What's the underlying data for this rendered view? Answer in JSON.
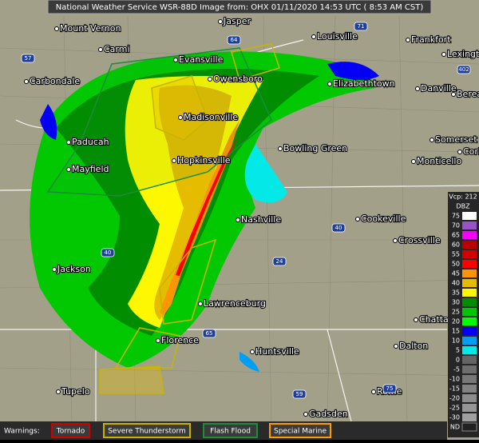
{
  "header": {
    "title": "National Weather Service WSR-88D Image from: OHX 01/11/2020 14:53 UTC ( 8:53 AM CST)"
  },
  "cities": [
    "Mount Vernon",
    "Jasper",
    "Louisville",
    "Frankfort",
    "Lexington",
    "Carmi",
    "Evansville",
    "Owensboro",
    "Elizabethtown",
    "Carbondale",
    "Danville",
    "Berea",
    "Madisonville",
    "Paducah",
    "Hopkinsville",
    "Bowling Green",
    "Somerset",
    "Corbin",
    "Mayfield",
    "Monticello",
    "Nashville",
    "Cookeville",
    "Crossville",
    "Jackson",
    "Lawrenceburg",
    "Chattanooga",
    "Florence",
    "Dalton",
    "Huntsville",
    "Tupelo",
    "Rome",
    "Gadsden"
  ],
  "highways": [
    "57",
    "64",
    "71",
    "402",
    "40",
    "24",
    "65",
    "59",
    "75",
    "40"
  ],
  "legend": {
    "vcp": "Vcp: 212",
    "unit": "DBZ",
    "scale": [
      {
        "value": 75,
        "color": "#fdfdfd"
      },
      {
        "value": 70,
        "color": "#9854c6"
      },
      {
        "value": 65,
        "color": "#f800fd"
      },
      {
        "value": 60,
        "color": "#bc0000"
      },
      {
        "value": 55,
        "color": "#d40000"
      },
      {
        "value": 50,
        "color": "#fd0000"
      },
      {
        "value": 45,
        "color": "#fd9500"
      },
      {
        "value": 40,
        "color": "#e5bc00"
      },
      {
        "value": 35,
        "color": "#fdf802"
      },
      {
        "value": 30,
        "color": "#008e00"
      },
      {
        "value": 25,
        "color": "#01c501"
      },
      {
        "value": 20,
        "color": "#02fd02"
      },
      {
        "value": 15,
        "color": "#0300f4"
      },
      {
        "value": 10,
        "color": "#019ff4"
      },
      {
        "value": 5,
        "color": "#04e9e7"
      },
      {
        "value": 0,
        "color": "#646464"
      },
      {
        "value": -5,
        "color": "#6e6e6e"
      },
      {
        "value": -10,
        "color": "#787878"
      },
      {
        "value": -15,
        "color": "#828282"
      },
      {
        "value": -20,
        "color": "#8c8c8c"
      },
      {
        "value": -25,
        "color": "#969696"
      },
      {
        "value": -30,
        "color": "#a0a0a0"
      }
    ],
    "nd": "ND"
  },
  "warnings": {
    "label": "Warnings:",
    "items": [
      {
        "name": "Tornado",
        "color": "#d00000"
      },
      {
        "name": "Severe Thunderstorm",
        "color": "#c8b400"
      },
      {
        "name": "Flash Flood",
        "color": "#1e8c3a"
      },
      {
        "name": "Special Marine",
        "color": "#ff9a00"
      }
    ]
  }
}
